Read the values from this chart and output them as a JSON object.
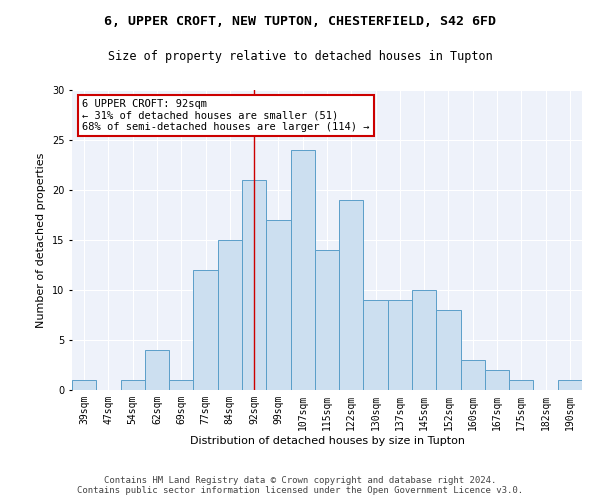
{
  "title1": "6, UPPER CROFT, NEW TUPTON, CHESTERFIELD, S42 6FD",
  "title2": "Size of property relative to detached houses in Tupton",
  "xlabel": "Distribution of detached houses by size in Tupton",
  "ylabel": "Number of detached properties",
  "categories": [
    "39sqm",
    "47sqm",
    "54sqm",
    "62sqm",
    "69sqm",
    "77sqm",
    "84sqm",
    "92sqm",
    "99sqm",
    "107sqm",
    "115sqm",
    "122sqm",
    "130sqm",
    "137sqm",
    "145sqm",
    "152sqm",
    "160sqm",
    "167sqm",
    "175sqm",
    "182sqm",
    "190sqm"
  ],
  "values": [
    1,
    0,
    1,
    4,
    1,
    12,
    15,
    21,
    17,
    24,
    14,
    19,
    9,
    9,
    10,
    8,
    3,
    2,
    1,
    0,
    1
  ],
  "bar_color": "#ccdff0",
  "bar_edge_color": "#5a9ec9",
  "highlight_index": 7,
  "highlight_line_color": "#cc0000",
  "annotation_text": "6 UPPER CROFT: 92sqm\n← 31% of detached houses are smaller (51)\n68% of semi-detached houses are larger (114) →",
  "annotation_box_color": "#ffffff",
  "annotation_box_edge": "#cc0000",
  "ylim": [
    0,
    30
  ],
  "yticks": [
    0,
    5,
    10,
    15,
    20,
    25,
    30
  ],
  "footer_text": "Contains HM Land Registry data © Crown copyright and database right 2024.\nContains public sector information licensed under the Open Government Licence v3.0.",
  "title1_fontsize": 9.5,
  "title2_fontsize": 8.5,
  "xlabel_fontsize": 8,
  "ylabel_fontsize": 8,
  "tick_fontsize": 7,
  "footer_fontsize": 6.5,
  "annotation_fontsize": 7.5,
  "bg_color": "#eef2fa",
  "fig_bg_color": "#ffffff"
}
